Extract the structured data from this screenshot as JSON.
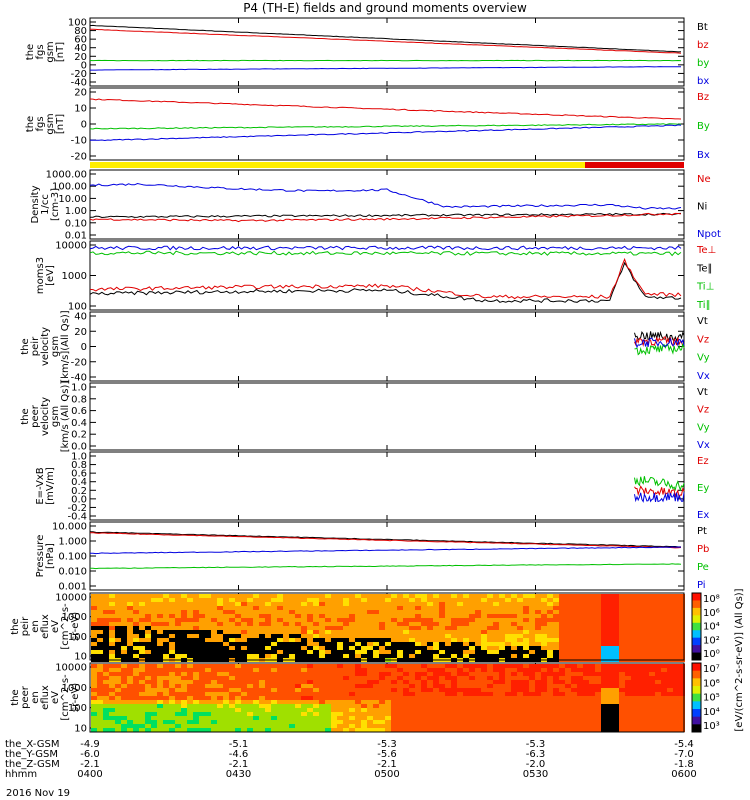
{
  "title": "P4 (TH-E) fields and ground moments overview",
  "date_label": "2016 Nov 19",
  "colors": {
    "black": "#000000",
    "red": "#e00000",
    "green": "#00c000",
    "blue": "#0000e0",
    "yellow": "#ffee00"
  },
  "panels": [
    {
      "ylabel": [
        "the",
        "fgs",
        "gsm",
        "[nT]"
      ],
      "ticks": [
        "100",
        "80",
        "60",
        "40",
        "20",
        "0",
        "-20",
        "-40"
      ],
      "ylim": [
        -40,
        100
      ],
      "legend": [
        {
          "text": "Bt",
          "color": "black"
        },
        {
          "text": "bz",
          "color": "red"
        },
        {
          "text": "by",
          "color": "green"
        },
        {
          "text": "bx",
          "color": "blue"
        }
      ]
    },
    {
      "ylabel": [
        "the",
        "fgs",
        "gsm",
        "[nT]"
      ],
      "ticks": [
        "20",
        "10",
        "0",
        "-10",
        "-20"
      ],
      "ylim": [
        -26,
        28
      ],
      "legend": [
        {
          "text": "Bz",
          "color": "red"
        },
        {
          "text": "By",
          "color": "green"
        },
        {
          "text": "Bx",
          "color": "blue"
        }
      ]
    },
    {
      "ylabel": [
        "Density",
        "1/cc",
        "[cm-3]"
      ],
      "ticks": [
        "1000.00",
        "100.00",
        "10.00",
        "1.00",
        "0.10",
        "0.01"
      ],
      "log": true,
      "ylim": [
        0.01,
        1000
      ],
      "legend": [
        {
          "text": "Ne",
          "color": "red"
        },
        {
          "text": "Ni",
          "color": "black"
        },
        {
          "text": "Npot",
          "color": "blue"
        }
      ]
    },
    {
      "ylabel": [
        "moms3",
        "[eV]"
      ],
      "ticks": [
        "10000",
        "1000",
        "100"
      ],
      "log": true,
      "ylim": [
        100,
        10000
      ],
      "legend": [
        {
          "text": "Te⊥",
          "color": "red"
        },
        {
          "text": "Te∥",
          "color": "black"
        },
        {
          "text": "Ti⊥",
          "color": "green"
        },
        {
          "text": "Ti∥",
          "color": "green"
        }
      ]
    },
    {
      "ylabel": [
        "the",
        "peir",
        "velocity",
        "gsm",
        "[km/s](All Qs)]"
      ],
      "ticks": [
        "40",
        "20",
        "0",
        "-20",
        "-40"
      ],
      "ylim": [
        -40,
        40
      ],
      "legend": [
        {
          "text": "Vt",
          "color": "black"
        },
        {
          "text": "Vz",
          "color": "red"
        },
        {
          "text": "Vy",
          "color": "green"
        },
        {
          "text": "Vx",
          "color": "blue"
        }
      ]
    },
    {
      "ylabel": [
        "the",
        "peer",
        "velocity",
        "gsm",
        "[km/s (All Qs)]"
      ],
      "ticks": [
        "1.0",
        "0.8",
        "0.6",
        "0.4",
        "0.2",
        "0.0"
      ],
      "ylim": [
        0,
        1
      ],
      "legend": [
        {
          "text": "Vt",
          "color": "black"
        },
        {
          "text": "Vz",
          "color": "red"
        },
        {
          "text": "Vy",
          "color": "green"
        },
        {
          "text": "Vx",
          "color": "blue"
        }
      ]
    },
    {
      "ylabel": [
        "E=-VxB",
        "[mV/m]"
      ],
      "ticks": [
        "1.0",
        "0.8",
        "0.6",
        "0.4",
        "0.2",
        "0.0",
        "-0.2",
        "-0.4"
      ],
      "ylim": [
        -0.4,
        1.0
      ],
      "legend": [
        {
          "text": "Ez",
          "color": "red"
        },
        {
          "text": "Ey",
          "color": "green"
        },
        {
          "text": "Ex",
          "color": "blue"
        }
      ]
    },
    {
      "ylabel": [
        "Pressure",
        "[nPa]"
      ],
      "ticks": [
        "10.000",
        "1.000",
        "0.100",
        "0.010",
        "0.001"
      ],
      "log": true,
      "ylim": [
        0.001,
        10
      ],
      "legend": [
        {
          "text": "Pt",
          "color": "black"
        },
        {
          "text": "Pb",
          "color": "red"
        },
        {
          "text": "Pe",
          "color": "green"
        },
        {
          "text": "Pi",
          "color": "blue"
        }
      ]
    },
    {
      "ylabel": [
        "the",
        "peir",
        "en",
        "eflux",
        "eV",
        "[cm^2-s-",
        "sr-eV)"
      ],
      "ticks": [
        "10000",
        "1000",
        "100",
        "10"
      ]
    },
    {
      "ylabel": [
        "the",
        "peer",
        "en",
        "eflux",
        "eV",
        "[cm^2-s-",
        "sr-eV)"
      ],
      "ticks": [
        "10000",
        "1000",
        "100",
        "10"
      ]
    }
  ],
  "colorbar_label": "[eV/(cm^2-s-sr-eV)] (All Qs)]",
  "cb1_ticks": [
    "10⁸",
    "10⁶",
    "10⁴",
    "10²",
    "10⁰"
  ],
  "cb2_ticks": [
    "10⁷",
    "10⁶",
    "10⁵",
    "10⁴",
    "10³"
  ],
  "xaxis": {
    "row_labels": [
      "the_X-GSM",
      "the_Y-GSM",
      "the_Z-GSM",
      "hhmm"
    ],
    "columns": [
      [
        "-4.9",
        "-6.0",
        "-2.1",
        "0400"
      ],
      [
        "-5.1",
        "-4.6",
        "-2.1",
        "0430"
      ],
      [
        "-5.3",
        "-5.6",
        "-2.1",
        "0500"
      ],
      [
        "-5.3",
        "-6.3",
        "-2.0",
        "0530"
      ],
      [
        "-5.4",
        "-7.0",
        "-1.8",
        "0600"
      ]
    ]
  },
  "chart_data": {
    "type": "line",
    "x_range": [
      "0400",
      "0600"
    ],
    "panels": [
      {
        "name": "fgs gsm",
        "series": [
          {
            "name": "Bt",
            "x": [
              "0400",
              "0600"
            ],
            "values": [
              92,
              30
            ]
          },
          {
            "name": "bz",
            "x": [
              "0400",
              "0600"
            ],
            "values": [
              83,
              27
            ]
          },
          {
            "name": "by",
            "x": [
              "0400",
              "0600"
            ],
            "values": [
              10,
              10
            ]
          },
          {
            "name": "bx",
            "x": [
              "0400",
              "0600"
            ],
            "values": [
              -12,
              -4
            ]
          }
        ]
      },
      {
        "name": "fgs gsm",
        "series": [
          {
            "name": "Bz",
            "x": [
              "0400",
              "0600"
            ],
            "values": [
              22,
              5
            ]
          },
          {
            "name": "By",
            "x": [
              "0400",
              "0600"
            ],
            "values": [
              -3,
              1
            ]
          },
          {
            "name": "Bx",
            "x": [
              "0400",
              "0600"
            ],
            "values": [
              -13,
              0
            ]
          }
        ]
      },
      {
        "name": "Density",
        "series": [
          {
            "name": "Npot",
            "x": [
              "0400",
              "0410",
              "0430",
              "0445",
              "0500",
              "0512",
              "0530",
              "0545",
              "0552",
              "0600"
            ],
            "values": [
              120,
              150,
              60,
              40,
              50,
              2,
              2.5,
              3,
              1.5,
              1.5
            ]
          },
          {
            "name": "Ni",
            "x": [
              "0400",
              "0500",
              "0545",
              "0600"
            ],
            "values": [
              0.3,
              0.4,
              0.5,
              0.5
            ]
          },
          {
            "name": "Ne",
            "x": [
              "0400",
              "0430",
              "0500",
              "0545",
              "0600"
            ],
            "values": [
              0.2,
              0.15,
              0.2,
              0.4,
              0.6
            ]
          }
        ]
      },
      {
        "name": "moms3",
        "series": [
          {
            "name": "Te⊥",
            "x": [
              "0400",
              "0600"
            ],
            "values": [
              8000,
              8000
            ]
          },
          {
            "name": "Ti∥",
            "x": [
              "0400",
              "0600"
            ],
            "values": [
              5500,
              5200
            ]
          },
          {
            "name": "Te∥",
            "x": [
              "0400",
              "0430",
              "0500",
              "0520",
              "0545",
              "0548",
              "0552",
              "0600"
            ],
            "values": [
              250,
              300,
              330,
              150,
              150,
              2500,
              200,
              180
            ]
          },
          {
            "name": "Ti⊥",
            "x": [
              "0400",
              "0430",
              "0500",
              "0520",
              "0545",
              "0548",
              "0552",
              "0600"
            ],
            "values": [
              350,
              420,
              460,
              200,
              200,
              3000,
              250,
              230
            ]
          }
        ]
      },
      {
        "name": "peir velocity",
        "series": [
          {
            "name": "Vt",
            "x": [
              "0550",
              "0600"
            ],
            "values": [
              15,
              12
            ]
          },
          {
            "name": "Vz",
            "x": [
              "0550",
              "0600"
            ],
            "values": [
              8,
              6
            ]
          },
          {
            "name": "Vy",
            "x": [
              "0550",
              "0600"
            ],
            "values": [
              -5,
              -2
            ]
          },
          {
            "name": "Vx",
            "x": [
              "0550",
              "0600"
            ],
            "values": [
              5,
              6
            ]
          }
        ]
      },
      {
        "name": "peer velocity",
        "series": []
      },
      {
        "name": "E=-VxB",
        "series": [
          {
            "name": "Ey",
            "x": [
              "0550",
              "0600"
            ],
            "values": [
              0.45,
              0.3
            ]
          },
          {
            "name": "Ez",
            "x": [
              "0550",
              "0600"
            ],
            "values": [
              0.2,
              0.12
            ]
          },
          {
            "name": "Ex",
            "x": [
              "0550",
              "0600"
            ],
            "values": [
              0.05,
              0.05
            ]
          }
        ]
      },
      {
        "name": "Pressure",
        "series": [
          {
            "name": "Pt",
            "x": [
              "0400",
              "0600"
            ],
            "values": [
              4,
              0.4
            ]
          },
          {
            "name": "Pb",
            "x": [
              "0400",
              "0600"
            ],
            "values": [
              3.5,
              0.35
            ]
          },
          {
            "name": "Pi",
            "x": [
              "0400",
              "0600"
            ],
            "values": [
              0.15,
              0.4
            ]
          },
          {
            "name": "Pe",
            "x": [
              "0400",
              "0600"
            ],
            "values": [
              0.015,
              0.03
            ]
          }
        ]
      }
    ]
  }
}
